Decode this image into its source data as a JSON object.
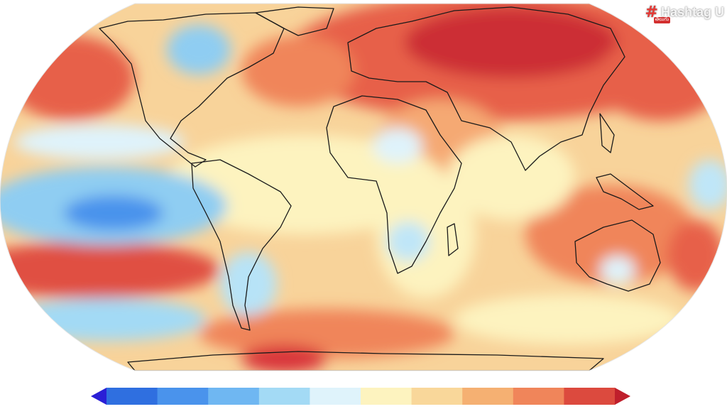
{
  "watermark": {
    "hash": "#",
    "name": "Hashtag U",
    "badge": "తెలుగు"
  },
  "palette": {
    "ocean_bg": "#ffffff",
    "coast": "#1a1a1a",
    "warm_low": "#fdf3bf",
    "warm_mid": "#f9c98a",
    "warm_high": "#f0855a",
    "hot": "#d9343a",
    "cool_low": "#dff3fb",
    "cool_mid": "#9ed7f1",
    "cool_high": "#5aaef0",
    "cold": "#2f6fe0"
  },
  "colorbar": {
    "colors": [
      "#2a1fd6",
      "#2f6fe0",
      "#4a93ec",
      "#6fb7f2",
      "#a3daf5",
      "#dff3fb",
      "#fdf3bf",
      "#f9d79a",
      "#f5b072",
      "#f0855a",
      "#dc4a3e",
      "#bf1f2c"
    ]
  }
}
